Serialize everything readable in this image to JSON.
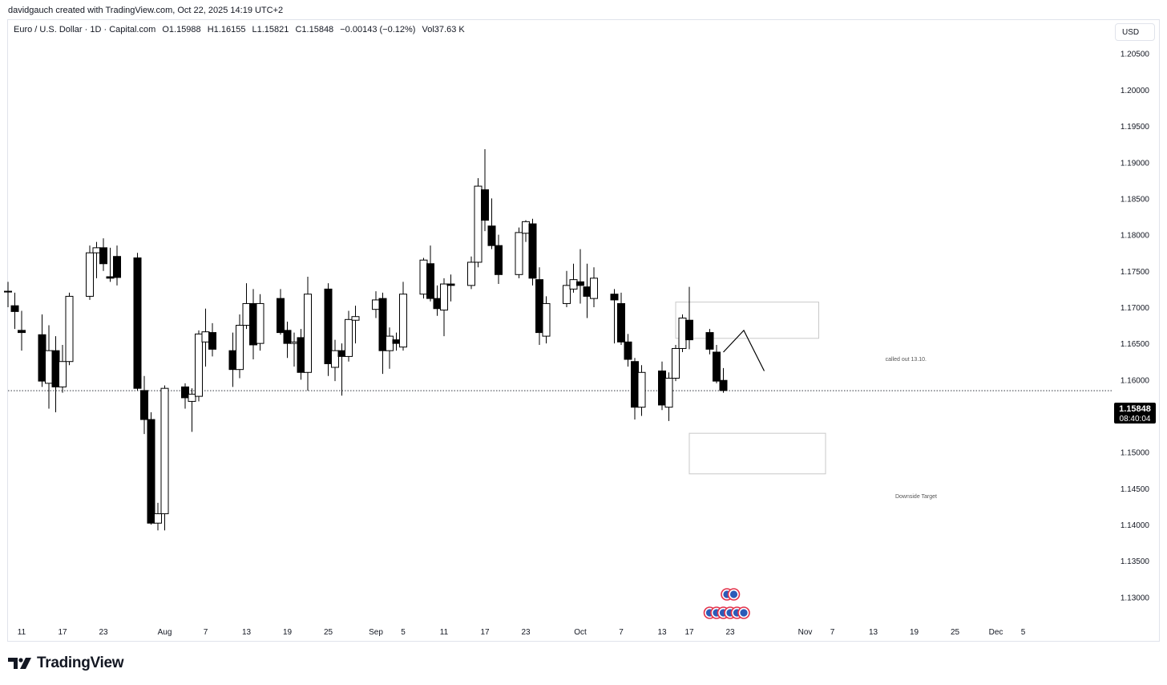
{
  "header": {
    "creator_line": "davidgauch created with TradingView.com, Oct 22, 2025 14:19 UTC+2"
  },
  "legend": {
    "symbol": "Euro / U.S. Dollar · 1D · Capital.com",
    "open": "O1.15988",
    "high": "H1.16155",
    "low": "L1.15821",
    "close": "C1.15848",
    "change": "−0.00143 (−0.12%)",
    "volume": "Vol37.63 K"
  },
  "currency_button": "USD",
  "brand": {
    "name": "TradingView"
  },
  "annotations": {
    "upper_box_label": "called out 13.10.",
    "lower_box_label": "Downside Target"
  },
  "price_tag": {
    "price": "1.15848",
    "countdown": "08:40:04"
  },
  "colors": {
    "bull": "#ffffff",
    "bear": "#000000",
    "wick": "#000000",
    "box_border": "#c8c8c8",
    "text": "#131722"
  },
  "chart_data": {
    "type": "candlestick",
    "ylim": [
      1.1265,
      1.2115
    ],
    "y_ticks": [
      "1.13000",
      "1.13500",
      "1.14000",
      "1.14500",
      "1.15000",
      "1.15500",
      "1.16000",
      "1.16500",
      "1.17000",
      "1.17500",
      "1.18000",
      "1.18500",
      "1.19000",
      "1.19500",
      "1.20000",
      "1.20500"
    ],
    "x_ticks": [
      {
        "label": "11",
        "date": "2025-07-11"
      },
      {
        "label": "17",
        "date": "2025-07-17"
      },
      {
        "label": "23",
        "date": "2025-07-23"
      },
      {
        "label": "Aug",
        "date": "2025-08-01"
      },
      {
        "label": "7",
        "date": "2025-08-07"
      },
      {
        "label": "13",
        "date": "2025-08-13"
      },
      {
        "label": "19",
        "date": "2025-08-19"
      },
      {
        "label": "25",
        "date": "2025-08-25"
      },
      {
        "label": "Sep",
        "date": "2025-09-01"
      },
      {
        "label": "5",
        "date": "2025-09-05"
      },
      {
        "label": "11",
        "date": "2025-09-11"
      },
      {
        "label": "17",
        "date": "2025-09-17"
      },
      {
        "label": "23",
        "date": "2025-09-23"
      },
      {
        "label": "Oct",
        "date": "2025-10-01"
      },
      {
        "label": "7",
        "date": "2025-10-07"
      },
      {
        "label": "13",
        "date": "2025-10-13"
      },
      {
        "label": "17",
        "date": "2025-10-17"
      },
      {
        "label": "23",
        "date": "2025-10-23"
      },
      {
        "label": "Nov",
        "date": "2025-11-03"
      },
      {
        "label": "7",
        "date": "2025-11-07"
      },
      {
        "label": "13",
        "date": "2025-11-13"
      },
      {
        "label": "19",
        "date": "2025-11-19"
      },
      {
        "label": "25",
        "date": "2025-11-25"
      },
      {
        "label": "Dec",
        "date": "2025-12-01"
      },
      {
        "label": "5",
        "date": "2025-12-05"
      }
    ],
    "candles": [
      {
        "d": "2025-07-09",
        "o": 1.1722,
        "h": 1.1735,
        "l": 1.17,
        "c": 1.1722
      },
      {
        "d": "2025-07-10",
        "o": 1.1702,
        "h": 1.172,
        "l": 1.167,
        "c": 1.1694
      },
      {
        "d": "2025-07-11",
        "o": 1.1668,
        "h": 1.1695,
        "l": 1.164,
        "c": 1.1665
      },
      {
        "d": "2025-07-14",
        "o": 1.1662,
        "h": 1.169,
        "l": 1.159,
        "c": 1.1598
      },
      {
        "d": "2025-07-15",
        "o": 1.1595,
        "h": 1.1675,
        "l": 1.156,
        "c": 1.164
      },
      {
        "d": "2025-07-16",
        "o": 1.164,
        "h": 1.166,
        "l": 1.1555,
        "c": 1.159
      },
      {
        "d": "2025-07-17",
        "o": 1.159,
        "h": 1.1648,
        "l": 1.1582,
        "c": 1.1625
      },
      {
        "d": "2025-07-18",
        "o": 1.1625,
        "h": 1.172,
        "l": 1.162,
        "c": 1.1715
      },
      {
        "d": "2025-07-21",
        "o": 1.1715,
        "h": 1.1785,
        "l": 1.171,
        "c": 1.1775
      },
      {
        "d": "2025-07-22",
        "o": 1.1775,
        "h": 1.179,
        "l": 1.174,
        "c": 1.1782
      },
      {
        "d": "2025-07-23",
        "o": 1.1782,
        "h": 1.1795,
        "l": 1.175,
        "c": 1.176
      },
      {
        "d": "2025-07-24",
        "o": 1.1742,
        "h": 1.1782,
        "l": 1.1735,
        "c": 1.174
      },
      {
        "d": "2025-07-25",
        "o": 1.177,
        "h": 1.1785,
        "l": 1.173,
        "c": 1.1741
      },
      {
        "d": "2025-07-28",
        "o": 1.1768,
        "h": 1.1775,
        "l": 1.1585,
        "c": 1.1588
      },
      {
        "d": "2025-07-29",
        "o": 1.1585,
        "h": 1.1605,
        "l": 1.1525,
        "c": 1.1545
      },
      {
        "d": "2025-07-30",
        "o": 1.1545,
        "h": 1.1555,
        "l": 1.14,
        "c": 1.1402
      },
      {
        "d": "2025-07-31",
        "o": 1.1402,
        "h": 1.143,
        "l": 1.1392,
        "c": 1.1415
      },
      {
        "d": "2025-08-01",
        "o": 1.1415,
        "h": 1.1592,
        "l": 1.1392,
        "c": 1.1588
      },
      {
        "d": "2025-08-04",
        "o": 1.159,
        "h": 1.1595,
        "l": 1.156,
        "c": 1.1575
      },
      {
        "d": "2025-08-05",
        "o": 1.157,
        "h": 1.1588,
        "l": 1.1528,
        "c": 1.158
      },
      {
        "d": "2025-08-06",
        "o": 1.1577,
        "h": 1.1668,
        "l": 1.157,
        "c": 1.1663
      },
      {
        "d": "2025-08-07",
        "o": 1.1652,
        "h": 1.1698,
        "l": 1.1618,
        "c": 1.1666
      },
      {
        "d": "2025-08-08",
        "o": 1.1665,
        "h": 1.1678,
        "l": 1.1632,
        "c": 1.1642
      },
      {
        "d": "2025-08-11",
        "o": 1.164,
        "h": 1.1665,
        "l": 1.159,
        "c": 1.1614
      },
      {
        "d": "2025-08-12",
        "o": 1.1614,
        "h": 1.169,
        "l": 1.1602,
        "c": 1.1675
      },
      {
        "d": "2025-08-13",
        "o": 1.1675,
        "h": 1.1733,
        "l": 1.167,
        "c": 1.1705
      },
      {
        "d": "2025-08-14",
        "o": 1.1705,
        "h": 1.1725,
        "l": 1.1628,
        "c": 1.1648
      },
      {
        "d": "2025-08-15",
        "o": 1.165,
        "h": 1.1718,
        "l": 1.164,
        "c": 1.1705
      },
      {
        "d": "2025-08-18",
        "o": 1.1712,
        "h": 1.1725,
        "l": 1.1662,
        "c": 1.1665
      },
      {
        "d": "2025-08-19",
        "o": 1.1668,
        "h": 1.168,
        "l": 1.163,
        "c": 1.165
      },
      {
        "d": "2025-08-20",
        "o": 1.165,
        "h": 1.1665,
        "l": 1.1618,
        "c": 1.1652
      },
      {
        "d": "2025-08-21",
        "o": 1.1658,
        "h": 1.167,
        "l": 1.16,
        "c": 1.161
      },
      {
        "d": "2025-08-22",
        "o": 1.161,
        "h": 1.1742,
        "l": 1.1585,
        "c": 1.1718
      },
      {
        "d": "2025-08-25",
        "o": 1.1725,
        "h": 1.1733,
        "l": 1.1605,
        "c": 1.1622
      },
      {
        "d": "2025-08-26",
        "o": 1.1617,
        "h": 1.1655,
        "l": 1.1598,
        "c": 1.164
      },
      {
        "d": "2025-08-27",
        "o": 1.164,
        "h": 1.165,
        "l": 1.1578,
        "c": 1.1632
      },
      {
        "d": "2025-08-28",
        "o": 1.1632,
        "h": 1.1695,
        "l": 1.1625,
        "c": 1.1683
      },
      {
        "d": "2025-08-29",
        "o": 1.1682,
        "h": 1.1702,
        "l": 1.165,
        "c": 1.1687
      },
      {
        "d": "2025-09-01",
        "o": 1.1697,
        "h": 1.1722,
        "l": 1.1685,
        "c": 1.171
      },
      {
        "d": "2025-09-02",
        "o": 1.1712,
        "h": 1.172,
        "l": 1.1608,
        "c": 1.164
      },
      {
        "d": "2025-09-03",
        "o": 1.164,
        "h": 1.1672,
        "l": 1.1615,
        "c": 1.166
      },
      {
        "d": "2025-09-04",
        "o": 1.1655,
        "h": 1.1665,
        "l": 1.164,
        "c": 1.165
      },
      {
        "d": "2025-09-05",
        "o": 1.1645,
        "h": 1.1735,
        "l": 1.164,
        "c": 1.1718
      },
      {
        "d": "2025-09-08",
        "o": 1.1718,
        "h": 1.1768,
        "l": 1.1712,
        "c": 1.1765
      },
      {
        "d": "2025-09-09",
        "o": 1.176,
        "h": 1.1785,
        "l": 1.1708,
        "c": 1.1712
      },
      {
        "d": "2025-09-10",
        "o": 1.1712,
        "h": 1.173,
        "l": 1.1688,
        "c": 1.1698
      },
      {
        "d": "2025-09-11",
        "o": 1.1696,
        "h": 1.174,
        "l": 1.166,
        "c": 1.1732
      },
      {
        "d": "2025-09-12",
        "o": 1.1732,
        "h": 1.1745,
        "l": 1.1708,
        "c": 1.173
      },
      {
        "d": "2025-09-15",
        "o": 1.173,
        "h": 1.177,
        "l": 1.1725,
        "c": 1.1762
      },
      {
        "d": "2025-09-16",
        "o": 1.1762,
        "h": 1.1878,
        "l": 1.1755,
        "c": 1.1867
      },
      {
        "d": "2025-09-17",
        "o": 1.1862,
        "h": 1.1918,
        "l": 1.1805,
        "c": 1.182
      },
      {
        "d": "2025-09-18",
        "o": 1.1812,
        "h": 1.185,
        "l": 1.178,
        "c": 1.1785
      },
      {
        "d": "2025-09-19",
        "o": 1.1785,
        "h": 1.18,
        "l": 1.1732,
        "c": 1.1745
      },
      {
        "d": "2025-09-22",
        "o": 1.1745,
        "h": 1.181,
        "l": 1.174,
        "c": 1.1803
      },
      {
        "d": "2025-09-23",
        "o": 1.1802,
        "h": 1.182,
        "l": 1.179,
        "c": 1.1818
      },
      {
        "d": "2025-09-24",
        "o": 1.1815,
        "h": 1.1822,
        "l": 1.173,
        "c": 1.174
      },
      {
        "d": "2025-09-25",
        "o": 1.1738,
        "h": 1.1755,
        "l": 1.1648,
        "c": 1.1665
      },
      {
        "d": "2025-09-26",
        "o": 1.166,
        "h": 1.1715,
        "l": 1.165,
        "c": 1.1705
      },
      {
        "d": "2025-09-29",
        "o": 1.1705,
        "h": 1.175,
        "l": 1.17,
        "c": 1.173
      },
      {
        "d": "2025-09-30",
        "o": 1.1725,
        "h": 1.176,
        "l": 1.172,
        "c": 1.1738
      },
      {
        "d": "2025-10-01",
        "o": 1.1735,
        "h": 1.178,
        "l": 1.1705,
        "c": 1.173
      },
      {
        "d": "2025-10-02",
        "o": 1.1728,
        "h": 1.176,
        "l": 1.1685,
        "c": 1.1715
      },
      {
        "d": "2025-10-03",
        "o": 1.1712,
        "h": 1.1755,
        "l": 1.17,
        "c": 1.174
      },
      {
        "d": "2025-10-06",
        "o": 1.1718,
        "h": 1.1725,
        "l": 1.165,
        "c": 1.171
      },
      {
        "d": "2025-10-07",
        "o": 1.1705,
        "h": 1.172,
        "l": 1.1648,
        "c": 1.1652
      },
      {
        "d": "2025-10-08",
        "o": 1.1652,
        "h": 1.1663,
        "l": 1.1618,
        "c": 1.1628
      },
      {
        "d": "2025-10-09",
        "o": 1.1625,
        "h": 1.163,
        "l": 1.1545,
        "c": 1.1562
      },
      {
        "d": "2025-10-10",
        "o": 1.1562,
        "h": 1.162,
        "l": 1.155,
        "c": 1.161
      },
      {
        "d": "2025-10-13",
        "o": 1.1612,
        "h": 1.1625,
        "l": 1.1558,
        "c": 1.1565
      },
      {
        "d": "2025-10-14",
        "o": 1.1562,
        "h": 1.161,
        "l": 1.1543,
        "c": 1.1602
      },
      {
        "d": "2025-10-15",
        "o": 1.1602,
        "h": 1.1648,
        "l": 1.1598,
        "c": 1.1643
      },
      {
        "d": "2025-10-16",
        "o": 1.1643,
        "h": 1.169,
        "l": 1.1638,
        "c": 1.1685
      },
      {
        "d": "2025-10-17",
        "o": 1.1682,
        "h": 1.1728,
        "l": 1.1642,
        "c": 1.1655
      },
      {
        "d": "2025-10-20",
        "o": 1.1665,
        "h": 1.167,
        "l": 1.1635,
        "c": 1.1642
      },
      {
        "d": "2025-10-21",
        "o": 1.1638,
        "h": 1.1648,
        "l": 1.1595,
        "c": 1.1598
      },
      {
        "d": "2025-10-22",
        "o": 1.1599,
        "h": 1.1616,
        "l": 1.1582,
        "c": 1.1585
      }
    ],
    "last_price": 1.15848,
    "upper_box": {
      "d0": "2025-10-15",
      "d1": "2025-11-05",
      "y_top": 1.1707,
      "y_bottom": 1.1657
    },
    "lower_box": {
      "d0": "2025-10-17",
      "d1": "2025-11-06",
      "y_top": 1.1526,
      "y_bottom": 1.147
    },
    "projection_path": [
      {
        "d": "2025-10-22",
        "y": 1.1638
      },
      {
        "d": "2025-10-25",
        "y": 1.1668
      },
      {
        "d": "2025-10-28",
        "y": 1.1612
      }
    ],
    "events": [
      {
        "d": "2025-10-23",
        "row": "top"
      },
      {
        "d": "2025-10-24",
        "row": "top"
      },
      {
        "d": "2025-10-20",
        "row": "bottom"
      },
      {
        "d": "2025-10-21",
        "row": "bottom"
      },
      {
        "d": "2025-10-22",
        "row": "bottom"
      },
      {
        "d": "2025-10-23",
        "row": "bottom"
      },
      {
        "d": "2025-10-24",
        "row": "bottom"
      },
      {
        "d": "2025-10-25",
        "row": "bottom"
      }
    ]
  }
}
